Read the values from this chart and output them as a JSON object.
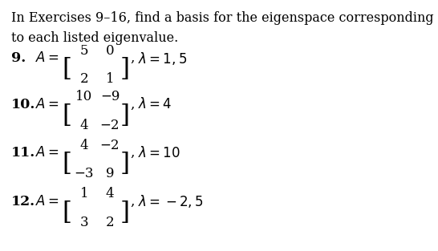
{
  "title_line1": "In Exercises 9–16, find a basis for the eigenspace corresponding",
  "title_line2": "to each listed eigenvalue.",
  "problems": [
    {
      "number": "9.",
      "matrix": [
        [
          "5",
          "0"
        ],
        [
          "2",
          "1"
        ]
      ],
      "eigenvalues": "λ = 1, 5"
    },
    {
      "number": "10.",
      "matrix": [
        [
          "10",
          "−9"
        ],
        [
          "4",
          "−2"
        ]
      ],
      "eigenvalues": "λ = 4"
    },
    {
      "number": "11.",
      "matrix": [
        [
          "4",
          "−2"
        ],
        [
          "−3",
          "9"
        ]
      ],
      "eigenvalues": "λ = 10"
    },
    {
      "number": "12.",
      "matrix": [
        [
          "1",
          "4"
        ],
        [
          "3",
          "2"
        ]
      ],
      "eigenvalues": "λ = −2, 5"
    }
  ],
  "bg_color": "#ffffff",
  "text_color": "#000000",
  "font_size_title": 11.5,
  "font_size_number": 12,
  "font_size_matrix": 12,
  "font_size_eigen": 12
}
